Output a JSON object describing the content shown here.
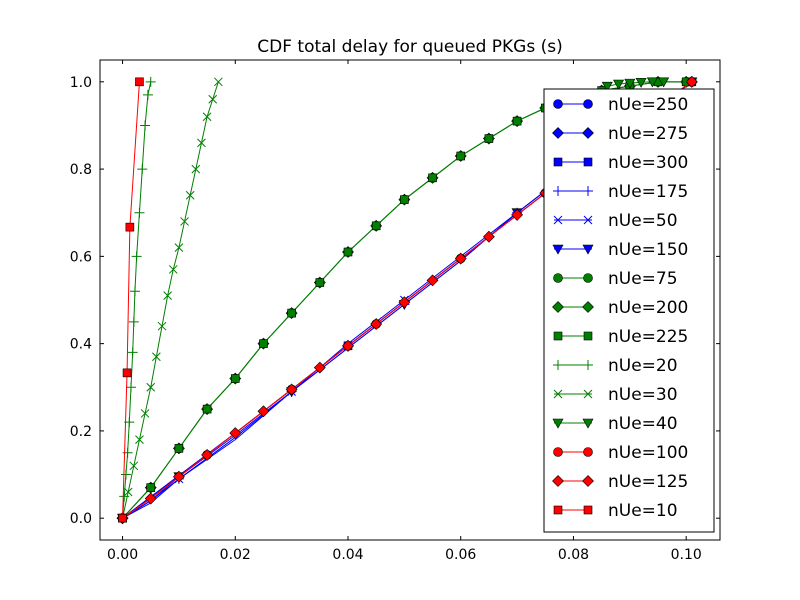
{
  "chart_data": {
    "type": "line",
    "title": "CDF total delay for queued PKGs (s)",
    "xlabel": "",
    "ylabel": "",
    "xlim": [
      -0.004,
      0.106
    ],
    "ylim": [
      -0.05,
      1.05
    ],
    "xticks": [
      0.0,
      0.02,
      0.04,
      0.06,
      0.08,
      0.1
    ],
    "xtick_labels": [
      "0.00",
      "0.02",
      "0.04",
      "0.06",
      "0.08",
      "0.10"
    ],
    "yticks": [
      0.0,
      0.2,
      0.4,
      0.6,
      0.8,
      1.0
    ],
    "ytick_labels": [
      "0.0",
      "0.2",
      "0.4",
      "0.6",
      "0.8",
      "1.0"
    ],
    "legend_position": "right",
    "grid": false,
    "series": [
      {
        "name": "nUe=250",
        "color": "#0000ff",
        "marker": "circle",
        "markevery": 2,
        "x": [
          0,
          0.02,
          0.04,
          0.06,
          0.08,
          0.1,
          0.101
        ],
        "y": [
          0,
          0.195,
          0.395,
          0.595,
          0.795,
          0.99,
          1.0
        ]
      },
      {
        "name": "nUe=275",
        "color": "#0000ff",
        "marker": "diamond",
        "markevery": 2,
        "x": [
          0,
          0.02,
          0.04,
          0.06,
          0.08,
          0.1,
          0.101
        ],
        "y": [
          0,
          0.195,
          0.395,
          0.595,
          0.795,
          0.99,
          1.0
        ]
      },
      {
        "name": "nUe=300",
        "color": "#0000ff",
        "marker": "square",
        "markevery": 2,
        "x": [
          0,
          0.02,
          0.04,
          0.06,
          0.08,
          0.1,
          0.101
        ],
        "y": [
          0,
          0.195,
          0.395,
          0.595,
          0.795,
          0.99,
          1.0
        ]
      },
      {
        "name": "nUe=175",
        "color": "#0000ff",
        "marker": "plus",
        "markevery": 2,
        "x": [
          0,
          0.005,
          0.01,
          0.02,
          0.03,
          0.04,
          0.05,
          0.06,
          0.07,
          0.08,
          0.09,
          0.101
        ],
        "y": [
          0,
          0.035,
          0.09,
          0.18,
          0.29,
          0.39,
          0.49,
          0.59,
          0.7,
          0.8,
          0.9,
          1.0
        ]
      },
      {
        "name": "nUe=50",
        "color": "#0000ff",
        "marker": "x",
        "markevery": 2,
        "x": [
          0,
          0.005,
          0.01,
          0.02,
          0.03,
          0.04,
          0.05,
          0.06,
          0.07,
          0.08,
          0.09,
          0.101
        ],
        "y": [
          0,
          0.04,
          0.09,
          0.185,
          0.29,
          0.4,
          0.5,
          0.6,
          0.7,
          0.8,
          0.9,
          1.0
        ]
      },
      {
        "name": "nUe=150",
        "color": "#0000ff",
        "marker": "triangle-down",
        "markevery": 2,
        "x": [
          0,
          0.005,
          0.01,
          0.02,
          0.03,
          0.04,
          0.05,
          0.06,
          0.07,
          0.08,
          0.09,
          0.101
        ],
        "y": [
          0,
          0.04,
          0.095,
          0.19,
          0.29,
          0.39,
          0.49,
          0.59,
          0.7,
          0.8,
          0.9,
          1.0
        ]
      },
      {
        "name": "nUe=75",
        "color": "#007f00",
        "marker": "circle",
        "markevery": 1,
        "x": [
          0,
          0.005,
          0.01,
          0.015,
          0.02,
          0.025,
          0.03,
          0.035,
          0.04,
          0.045,
          0.05,
          0.055,
          0.06,
          0.065,
          0.07,
          0.075,
          0.08,
          0.085,
          0.09,
          0.095,
          0.1
        ],
        "y": [
          0,
          0.07,
          0.16,
          0.25,
          0.32,
          0.4,
          0.47,
          0.54,
          0.61,
          0.67,
          0.73,
          0.78,
          0.83,
          0.87,
          0.91,
          0.94,
          0.96,
          0.98,
          0.99,
          1.0,
          1.0
        ]
      },
      {
        "name": "nUe=200",
        "color": "#007f00",
        "marker": "diamond",
        "markevery": 1,
        "x": [
          0,
          0.005,
          0.01,
          0.015,
          0.02,
          0.025,
          0.03,
          0.035,
          0.04,
          0.045,
          0.05,
          0.055,
          0.06,
          0.065,
          0.07,
          0.075,
          0.08,
          0.085,
          0.09,
          0.095,
          0.1
        ],
        "y": [
          0,
          0.07,
          0.16,
          0.25,
          0.32,
          0.4,
          0.47,
          0.54,
          0.61,
          0.67,
          0.73,
          0.78,
          0.83,
          0.87,
          0.91,
          0.94,
          0.96,
          0.98,
          0.99,
          1.0,
          1.0
        ]
      },
      {
        "name": "nUe=225",
        "color": "#007f00",
        "marker": "square",
        "markevery": 1,
        "x": [
          0,
          0.005,
          0.01,
          0.015,
          0.02,
          0.025,
          0.03,
          0.035,
          0.04,
          0.045,
          0.05,
          0.055,
          0.06,
          0.065,
          0.07,
          0.075,
          0.08,
          0.085,
          0.09,
          0.095,
          0.1
        ],
        "y": [
          0,
          0.07,
          0.16,
          0.25,
          0.32,
          0.4,
          0.47,
          0.54,
          0.61,
          0.67,
          0.73,
          0.78,
          0.83,
          0.87,
          0.91,
          0.94,
          0.96,
          0.98,
          0.99,
          1.0,
          1.0
        ]
      },
      {
        "name": "nUe=20",
        "color": "#007f00",
        "marker": "plus",
        "markevery": 1,
        "x": [
          0,
          0.0003,
          0.0006,
          0.0009,
          0.0012,
          0.0015,
          0.0018,
          0.002,
          0.0022,
          0.0025,
          0.003,
          0.0035,
          0.004,
          0.0045,
          0.005
        ],
        "y": [
          0,
          0.05,
          0.1,
          0.15,
          0.22,
          0.3,
          0.38,
          0.45,
          0.52,
          0.6,
          0.7,
          0.8,
          0.9,
          0.97,
          1.0
        ]
      },
      {
        "name": "nUe=30",
        "color": "#007f00",
        "marker": "x",
        "markevery": 1,
        "x": [
          0,
          0.001,
          0.002,
          0.003,
          0.004,
          0.005,
          0.006,
          0.007,
          0.008,
          0.009,
          0.01,
          0.011,
          0.012,
          0.013,
          0.014,
          0.015,
          0.016,
          0.017
        ],
        "y": [
          0,
          0.06,
          0.12,
          0.18,
          0.24,
          0.3,
          0.37,
          0.44,
          0.51,
          0.57,
          0.62,
          0.68,
          0.74,
          0.8,
          0.86,
          0.92,
          0.96,
          1.0
        ]
      },
      {
        "name": "nUe=40",
        "color": "#007f00",
        "marker": "triangle-down",
        "markevery": 1,
        "x": [
          0.086,
          0.088,
          0.09,
          0.092,
          0.094,
          0.096
        ],
        "y": [
          0.99,
          0.995,
          0.997,
          0.999,
          1.0,
          1.0
        ]
      },
      {
        "name": "nUe=100",
        "color": "#ff0000",
        "marker": "circle",
        "markevery": 3,
        "x": [
          0,
          0.005,
          0.01,
          0.015,
          0.02,
          0.025,
          0.03,
          0.035,
          0.04,
          0.045,
          0.05,
          0.055,
          0.06,
          0.065,
          0.07,
          0.075,
          0.08,
          0.085,
          0.09,
          0.095,
          0.101
        ],
        "y": [
          0,
          0.045,
          0.095,
          0.145,
          0.195,
          0.245,
          0.295,
          0.345,
          0.395,
          0.445,
          0.495,
          0.545,
          0.595,
          0.645,
          0.695,
          0.745,
          0.795,
          0.845,
          0.895,
          0.945,
          1.0
        ]
      },
      {
        "name": "nUe=125",
        "color": "#ff0000",
        "marker": "diamond",
        "markevery": 1,
        "x": [
          0,
          0.005,
          0.01,
          0.015,
          0.02,
          0.025,
          0.03,
          0.035,
          0.04,
          0.045,
          0.05,
          0.055,
          0.06,
          0.065,
          0.07,
          0.075,
          0.08,
          0.085,
          0.09,
          0.095,
          0.101
        ],
        "y": [
          0,
          0.045,
          0.095,
          0.145,
          0.195,
          0.245,
          0.295,
          0.345,
          0.395,
          0.445,
          0.495,
          0.545,
          0.595,
          0.645,
          0.695,
          0.745,
          0.795,
          0.845,
          0.895,
          0.945,
          1.0
        ]
      },
      {
        "name": "nUe=10",
        "color": "#ff0000",
        "marker": "square",
        "markevery": 1,
        "x": [
          0,
          0.0008,
          0.0013,
          0.003
        ],
        "y": [
          0,
          0.333,
          0.667,
          1.0
        ]
      }
    ]
  }
}
